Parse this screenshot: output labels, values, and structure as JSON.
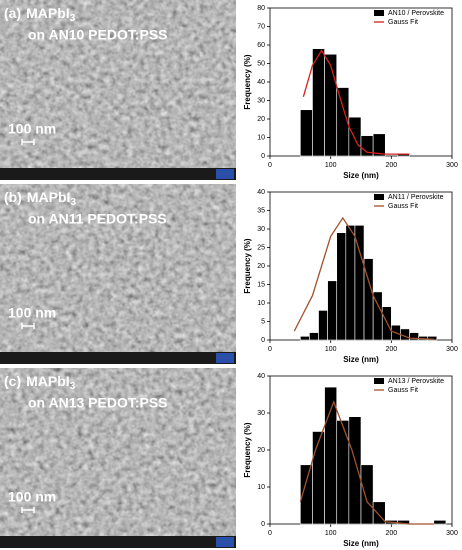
{
  "panels": [
    {
      "label": "(a)",
      "formula": "MAPbI",
      "subscript": "3",
      "substrate": "on AN10 PEDOT:PSS",
      "scale_bar": "100 nm"
    },
    {
      "label": "(b)",
      "formula": "MAPbI",
      "subscript": "3",
      "substrate": "on AN11 PEDOT:PSS",
      "scale_bar": "100 nm"
    },
    {
      "label": "(c)",
      "formula": "MAPbI",
      "subscript": "3",
      "substrate": "on AN13 PEDOT:PSS",
      "scale_bar": "100 nm"
    }
  ],
  "chart_data": [
    {
      "type": "histogram",
      "x_label": "Size (nm)",
      "y_label": "Frequency (%)",
      "bins": [
        50,
        70,
        90,
        110,
        130,
        150,
        170,
        190,
        210,
        230
      ],
      "series": [
        {
          "name": "AN10 / Perovskite",
          "color": "#000000",
          "values": [
            25,
            58,
            55,
            37,
            21,
            11,
            12,
            0,
            1
          ]
        },
        {
          "name": "Gauss Fit",
          "color": "#d62020",
          "x": [
            55,
            70,
            85,
            100,
            115,
            130,
            145,
            160,
            190,
            230
          ],
          "values": [
            32,
            49,
            57,
            49,
            32,
            16,
            6,
            2,
            1,
            1
          ]
        }
      ],
      "xlim": [
        0,
        300
      ],
      "xticks": [
        0,
        100,
        200,
        300
      ],
      "ylim": [
        0,
        80
      ],
      "yticks": [
        0,
        10,
        20,
        30,
        40,
        50,
        60,
        70,
        80
      ]
    },
    {
      "type": "histogram",
      "x_label": "Size (nm)",
      "y_label": "Frequency (%)",
      "bins": [
        50,
        65,
        80,
        95,
        110,
        125,
        140,
        155,
        170,
        185,
        200,
        215,
        230,
        245,
        260,
        275
      ],
      "series": [
        {
          "name": "AN11 / Perovskite",
          "color": "#000000",
          "values": [
            1,
            2,
            8,
            16,
            29,
            31,
            31,
            22,
            13,
            9,
            4,
            3,
            2,
            1,
            1
          ]
        },
        {
          "name": "Gauss Fit",
          "color": "#a0522d",
          "x": [
            40,
            70,
            100,
            120,
            140,
            170,
            200,
            230,
            270
          ],
          "values": [
            2.4,
            12,
            28,
            33,
            28,
            12,
            2.4,
            0.5,
            0.2
          ]
        }
      ],
      "xlim": [
        0,
        300
      ],
      "xticks": [
        0,
        100,
        200,
        300
      ],
      "ylim": [
        0,
        40
      ],
      "yticks": [
        0,
        5,
        10,
        15,
        20,
        25,
        30,
        35,
        40
      ]
    },
    {
      "type": "histogram",
      "x_label": "Size (nm)",
      "y_label": "Frequency (%)",
      "bins": [
        50,
        70,
        90,
        110,
        130,
        150,
        170,
        190,
        210,
        230,
        250,
        270,
        290
      ],
      "series": [
        {
          "name": "AN13 / Perovskite",
          "color": "#000000",
          "values": [
            16,
            25,
            37,
            28,
            29,
            16,
            6,
            1,
            1,
            0,
            0,
            1
          ]
        },
        {
          "name": "Gauss Fit",
          "color": "#a0522d",
          "x": [
            50,
            75,
            105,
            135,
            160,
            190,
            230,
            270
          ],
          "values": [
            6,
            20,
            33,
            20,
            6,
            0.6,
            0,
            0
          ]
        }
      ],
      "xlim": [
        0,
        300
      ],
      "xticks": [
        0,
        100,
        200,
        300
      ],
      "ylim": [
        0,
        40
      ],
      "yticks": [
        0,
        10,
        20,
        30,
        40
      ]
    }
  ]
}
